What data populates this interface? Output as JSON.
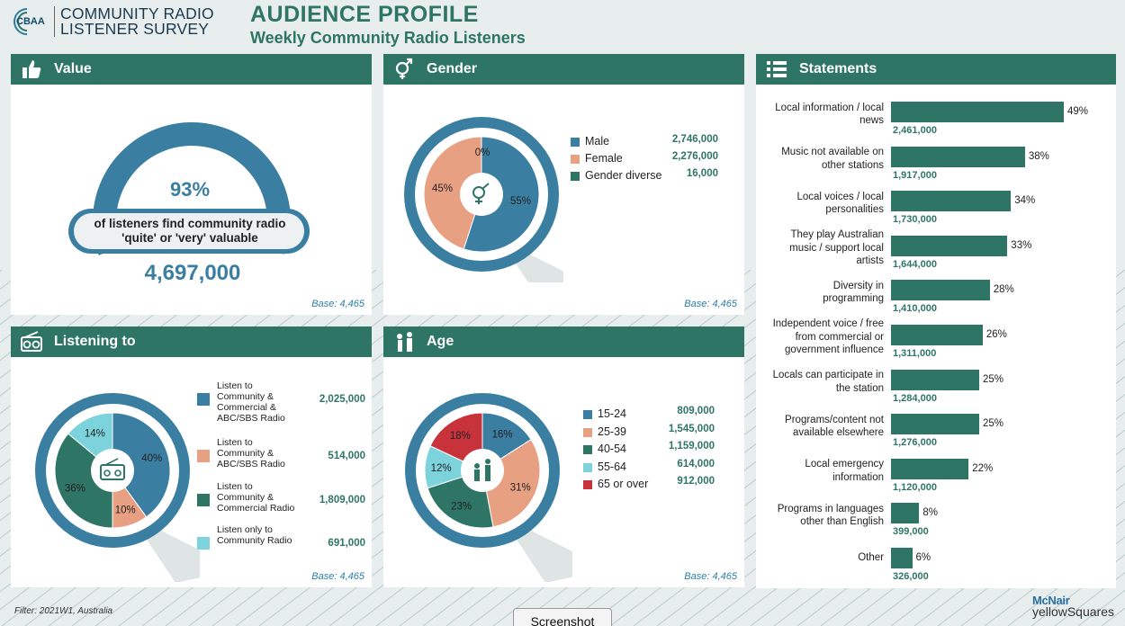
{
  "header": {
    "logo_abbr": "CBAA",
    "logo_line1": "COMMUNITY RADIO",
    "logo_line2": "LISTENER SURVEY",
    "title": "AUDIENCE PROFILE",
    "subtitle": "Weekly Community Radio Listeners"
  },
  "value_panel": {
    "title": "Value",
    "icon": "thumbs-up-icon",
    "percent_label": "93%",
    "percent": 93,
    "caption_line1": "of listeners find community radio",
    "caption_line2": "'quite' or 'very' valuable",
    "count": "4,697,000",
    "base": "Base: 4,465"
  },
  "gender_panel": {
    "title": "Gender",
    "icon": "gender-icon",
    "base": "Base: 4,465",
    "legend": [
      {
        "label": "Male",
        "value": "2,746,000",
        "color": "#3a7ea1"
      },
      {
        "label": "Female",
        "value": "2,276,000",
        "color": "#e8a083"
      },
      {
        "label": "Gender diverse",
        "value": "16,000",
        "color": "#2e7565"
      }
    ]
  },
  "listening_panel": {
    "title": "Listening to",
    "icon": "radio-icon",
    "base": "Base: 4,465",
    "legend": [
      {
        "lines": [
          "Listen to",
          "Community &",
          "Commercial &",
          "ABC/SBS Radio"
        ],
        "value": "2,025,000",
        "color": "#3a7ea1"
      },
      {
        "lines": [
          "Listen to",
          "Community &",
          "ABC/SBS Radio"
        ],
        "value": "514,000",
        "color": "#e8a083"
      },
      {
        "lines": [
          "Listen to",
          "Community &",
          "Commercial Radio"
        ],
        "value": "1,809,000",
        "color": "#2e7565"
      },
      {
        "lines": [
          "Listen only to",
          "Community Radio"
        ],
        "value": "691,000",
        "color": "#7dd3dc"
      }
    ]
  },
  "age_panel": {
    "title": "Age",
    "icon": "family-icon",
    "base": "Base: 4,465",
    "legend": [
      {
        "label": "15-24",
        "value": "809,000",
        "color": "#3a7ea1"
      },
      {
        "label": "25-39",
        "value": "1,545,000",
        "color": "#e8a083"
      },
      {
        "label": "40-54",
        "value": "1,159,000",
        "color": "#2e7565"
      },
      {
        "label": "55-64",
        "value": "614,000",
        "color": "#7dd3dc"
      },
      {
        "label": "65 or over",
        "value": "912,000",
        "color": "#c8323a"
      }
    ]
  },
  "statements_panel": {
    "title": "Statements",
    "icon": "list-icon"
  },
  "chart_data": [
    {
      "type": "pie",
      "title": "Gender",
      "categories": [
        "Male",
        "Female",
        "Gender diverse"
      ],
      "values": [
        55,
        45,
        0
      ],
      "labels": [
        "55%",
        "45%",
        "0%"
      ],
      "colors": [
        "#3a7ea1",
        "#e8a083",
        "#2e7565"
      ]
    },
    {
      "type": "pie",
      "title": "Listening to",
      "categories": [
        "Listen to Community & Commercial & ABC/SBS Radio",
        "Listen to Community & ABC/SBS Radio",
        "Listen to Community & Commercial Radio",
        "Listen only to Community Radio"
      ],
      "values": [
        40,
        10,
        36,
        14
      ],
      "labels": [
        "40%",
        "10%",
        "36%",
        "14%"
      ],
      "colors": [
        "#3a7ea1",
        "#e8a083",
        "#2e7565",
        "#7dd3dc"
      ]
    },
    {
      "type": "pie",
      "title": "Age",
      "categories": [
        "15-24",
        "25-39",
        "40-54",
        "55-64",
        "65 or over"
      ],
      "values": [
        16,
        31,
        23,
        12,
        18
      ],
      "labels": [
        "16%",
        "31%",
        "23%",
        "12%",
        "18%"
      ],
      "colors": [
        "#3a7ea1",
        "#e8a083",
        "#2e7565",
        "#7dd3dc",
        "#c8323a"
      ]
    },
    {
      "type": "bar",
      "title": "Statements",
      "orientation": "horizontal",
      "categories": [
        [
          "Local information / local",
          "news"
        ],
        [
          "Music not available on",
          "other stations"
        ],
        [
          "Local voices / local",
          "personalities"
        ],
        [
          "They play Australian",
          "music / support local",
          "artists"
        ],
        [
          "Diversity in",
          "programming"
        ],
        [
          "Independent voice / free",
          "from commercial or",
          "government influence"
        ],
        [
          "Locals can participate in",
          "the station"
        ],
        [
          "Programs/content not",
          "available elsewhere"
        ],
        [
          "Local emergency",
          "information"
        ],
        [
          "Programs in languages",
          "other than English"
        ],
        [
          "Other"
        ]
      ],
      "values": [
        49,
        38,
        34,
        33,
        28,
        26,
        25,
        25,
        22,
        8,
        6
      ],
      "value_labels": [
        "49%",
        "38%",
        "34%",
        "33%",
        "28%",
        "26%",
        "25%",
        "25%",
        "22%",
        "8%",
        "6%"
      ],
      "counts": [
        "2,461,000",
        "1,917,000",
        "1,730,000",
        "1,644,000",
        "1,410,000",
        "1,311,000",
        "1,284,000",
        "1,276,000",
        "1,120,000",
        "399,000",
        "326,000"
      ],
      "color": "#2e7565"
    }
  ],
  "footer": {
    "filter": "Filter: 2021W1, Australia",
    "screenshot_button": "Screenshot",
    "brand_line1": "McNair",
    "brand_line2": "yellowSquares"
  }
}
